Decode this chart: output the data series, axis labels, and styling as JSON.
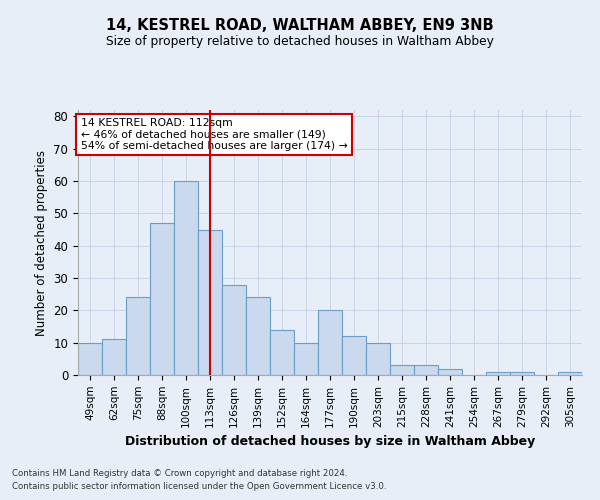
{
  "title_line1": "14, KESTREL ROAD, WALTHAM ABBEY, EN9 3NB",
  "title_line2": "Size of property relative to detached houses in Waltham Abbey",
  "xlabel": "Distribution of detached houses by size in Waltham Abbey",
  "ylabel": "Number of detached properties",
  "categories": [
    "49sqm",
    "62sqm",
    "75sqm",
    "88sqm",
    "100sqm",
    "113sqm",
    "126sqm",
    "139sqm",
    "152sqm",
    "164sqm",
    "177sqm",
    "190sqm",
    "203sqm",
    "215sqm",
    "228sqm",
    "241sqm",
    "254sqm",
    "267sqm",
    "279sqm",
    "292sqm",
    "305sqm"
  ],
  "values": [
    10,
    11,
    24,
    47,
    60,
    45,
    28,
    24,
    14,
    10,
    20,
    12,
    10,
    3,
    3,
    2,
    0,
    1,
    1,
    0,
    1
  ],
  "bar_color": "#cad9ed",
  "bar_edge_color": "#6a9ec7",
  "vline_x": 5,
  "vline_color": "#cc0000",
  "annotation_text": "14 KESTREL ROAD: 112sqm\n← 46% of detached houses are smaller (149)\n54% of semi-detached houses are larger (174) →",
  "annotation_box_color": "#ffffff",
  "annotation_box_edge_color": "#cc0000",
  "ylim": [
    0,
    82
  ],
  "yticks": [
    0,
    10,
    20,
    30,
    40,
    50,
    60,
    70,
    80
  ],
  "grid_color": "#c8d4e8",
  "footer_line1": "Contains HM Land Registry data © Crown copyright and database right 2024.",
  "footer_line2": "Contains public sector information licensed under the Open Government Licence v3.0.",
  "bg_color": "#e8eef7",
  "plot_bg_color": "#e8eef7"
}
